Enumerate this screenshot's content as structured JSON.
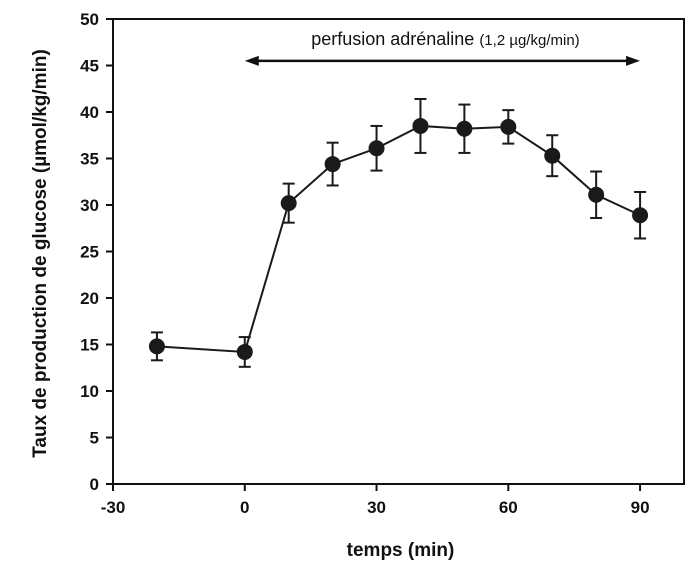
{
  "chart_data": {
    "type": "line",
    "xlabel": "temps (min)",
    "ylabel": "Taux de production de glucose (µmol/kg/min)",
    "xlim": [
      -30,
      100
    ],
    "ylim": [
      0,
      50
    ],
    "xticks": [
      -30,
      0,
      30,
      60,
      90
    ],
    "yticks": [
      0,
      5,
      10,
      15,
      20,
      25,
      30,
      35,
      40,
      45,
      50
    ],
    "grid": false,
    "legend": "none",
    "series": [
      {
        "x": [
          -20,
          0,
          10,
          20,
          30,
          40,
          50,
          60,
          70,
          80,
          90
        ],
        "values": [
          14.8,
          14.2,
          30.2,
          34.4,
          36.1,
          38.5,
          38.2,
          38.4,
          35.3,
          31.1,
          28.9
        ],
        "error": [
          1.5,
          1.6,
          2.1,
          2.3,
          2.4,
          2.9,
          2.6,
          1.8,
          2.2,
          2.5,
          2.5
        ]
      }
    ],
    "annotations": [
      {
        "text_main": "perfusion adrénaline ",
        "text_small": "(1,2 µg/kg/min)",
        "x_start": 0,
        "x_end": 90,
        "y": 45.5,
        "style": "double-arrow"
      }
    ],
    "colors": {
      "marker": "#1a1a1a",
      "line": "#1a1a1a",
      "axis": "#111111"
    }
  }
}
